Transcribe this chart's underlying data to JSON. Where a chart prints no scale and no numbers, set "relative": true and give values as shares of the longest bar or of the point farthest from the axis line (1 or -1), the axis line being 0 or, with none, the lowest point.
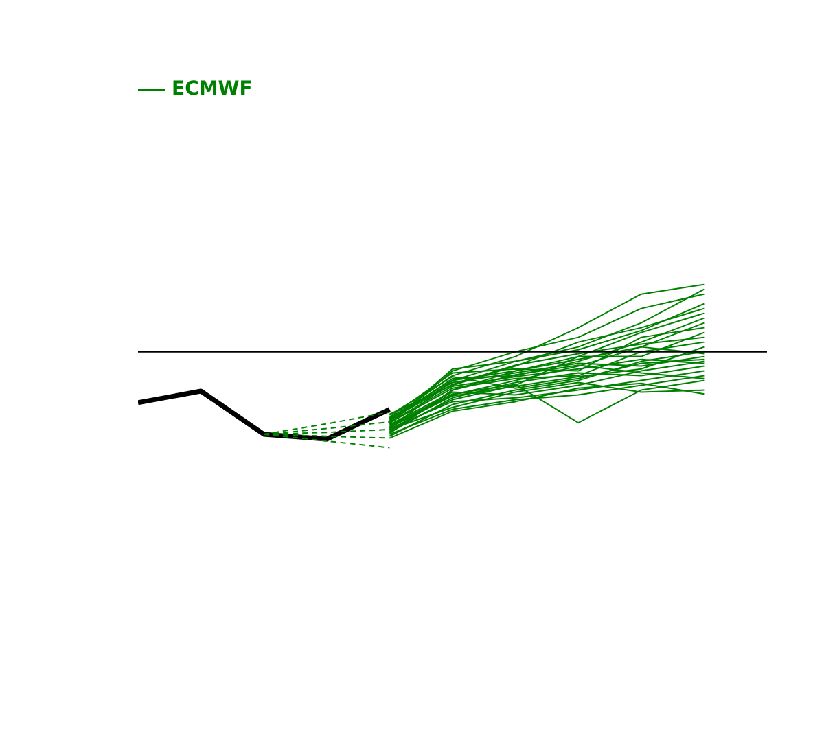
{
  "chart_data": {
    "type": "line",
    "relative": true,
    "categories": [
      null,
      null,
      null,
      null,
      null,
      null,
      null,
      null,
      null,
      null,
      null
    ],
    "tick_labels": false,
    "grid": false,
    "legend": "top left",
    "marker": "none",
    "series": [
      {
        "color": "#000000",
        "values": [
          -0.53,
          -0.41,
          -0.86,
          -0.91,
          -0.6,
          null,
          null,
          null,
          null,
          null,
          null
        ]
      },
      {
        "color": "#008000",
        "values": [
          null,
          null,
          -0.86,
          -0.75,
          -0.63,
          null,
          null,
          null,
          null,
          null,
          null
        ],
        "line_style": "dashed"
      },
      {
        "color": "#008000",
        "values": [
          null,
          null,
          -0.86,
          -0.8,
          -0.73,
          null,
          null,
          null,
          null,
          null,
          null
        ],
        "line_style": "dashed"
      },
      {
        "color": "#008000",
        "values": [
          null,
          null,
          -0.86,
          -0.84,
          -0.81,
          null,
          null,
          null,
          null,
          null,
          null
        ],
        "line_style": "dashed"
      },
      {
        "color": "#008000",
        "values": [
          null,
          null,
          -0.86,
          -0.88,
          -0.9,
          null,
          null,
          null,
          null,
          null,
          null
        ],
        "line_style": "dashed"
      },
      {
        "color": "#008000",
        "values": [
          null,
          null,
          -0.86,
          -0.93,
          -1.0,
          null,
          null,
          null,
          null,
          null,
          null
        ],
        "line_style": "dashed"
      },
      {
        "name": "ECMWF",
        "color": "#008000",
        "values": [
          null,
          null,
          null,
          null,
          -0.7,
          -0.25,
          -0.05,
          0.25,
          0.6,
          0.7,
          null
        ]
      },
      {
        "color": "#008000",
        "values": [
          null,
          null,
          null,
          null,
          -0.75,
          -0.2,
          0.0,
          0.15,
          0.45,
          0.6,
          null
        ]
      },
      {
        "color": "#008000",
        "values": [
          null,
          null,
          null,
          null,
          -0.8,
          -0.3,
          -0.1,
          0.05,
          0.3,
          0.65,
          null
        ]
      },
      {
        "color": "#008000",
        "values": [
          null,
          null,
          null,
          null,
          -0.65,
          -0.35,
          -0.15,
          0.1,
          0.25,
          0.45,
          null
        ]
      },
      {
        "color": "#008000",
        "values": [
          null,
          null,
          null,
          null,
          -0.85,
          -0.4,
          -0.2,
          -0.05,
          0.2,
          0.4,
          null
        ]
      },
      {
        "color": "#008000",
        "values": [
          null,
          null,
          null,
          null,
          -0.72,
          -0.28,
          -0.25,
          -0.1,
          0.1,
          0.35,
          null
        ]
      },
      {
        "color": "#008000",
        "values": [
          null,
          null,
          null,
          null,
          -0.78,
          -0.45,
          -0.3,
          -0.15,
          0.05,
          0.3,
          null
        ]
      },
      {
        "color": "#008000",
        "values": [
          null,
          null,
          null,
          null,
          -0.68,
          -0.22,
          -0.18,
          -0.2,
          0.15,
          0.25,
          null
        ]
      },
      {
        "color": "#008000",
        "values": [
          null,
          null,
          null,
          null,
          -0.82,
          -0.5,
          -0.35,
          -0.05,
          -0.05,
          0.2,
          null
        ]
      },
      {
        "color": "#008000",
        "values": [
          null,
          null,
          null,
          null,
          -0.74,
          -0.38,
          -0.28,
          -0.25,
          0.0,
          0.1,
          null
        ]
      },
      {
        "color": "#008000",
        "values": [
          null,
          null,
          null,
          null,
          -0.88,
          -0.55,
          -0.4,
          -0.3,
          -0.1,
          0.0,
          null
        ]
      },
      {
        "color": "#008000",
        "values": [
          null,
          null,
          null,
          null,
          -0.7,
          -0.32,
          -0.22,
          -0.12,
          -0.15,
          -0.05,
          null
        ]
      },
      {
        "color": "#008000",
        "values": [
          null,
          null,
          null,
          null,
          -0.76,
          -0.42,
          -0.45,
          -0.35,
          -0.2,
          -0.1,
          null
        ]
      },
      {
        "color": "#008000",
        "values": [
          null,
          null,
          null,
          null,
          -0.84,
          -0.48,
          -0.32,
          -0.22,
          -0.25,
          -0.15,
          null
        ]
      },
      {
        "color": "#008000",
        "values": [
          null,
          null,
          null,
          null,
          -0.66,
          -0.26,
          -0.38,
          -0.28,
          -0.12,
          -0.08,
          null
        ]
      },
      {
        "color": "#008000",
        "values": [
          null,
          null,
          null,
          null,
          -0.8,
          -0.52,
          -0.48,
          -0.4,
          -0.3,
          -0.2,
          null
        ]
      },
      {
        "color": "#008000",
        "values": [
          null,
          null,
          null,
          null,
          -0.73,
          -0.36,
          -0.26,
          -0.18,
          -0.08,
          -0.12,
          null
        ]
      },
      {
        "color": "#008000",
        "values": [
          null,
          null,
          null,
          null,
          -0.86,
          -0.6,
          -0.5,
          -0.45,
          -0.35,
          -0.25,
          null
        ]
      },
      {
        "color": "#008000",
        "values": [
          null,
          null,
          null,
          null,
          -0.77,
          -0.44,
          -0.34,
          -0.74,
          -0.4,
          -0.3,
          null
        ]
      },
      {
        "color": "#008000",
        "values": [
          null,
          null,
          null,
          null,
          -0.81,
          -0.58,
          -0.42,
          -0.32,
          -0.42,
          -0.4,
          null
        ]
      },
      {
        "color": "#008000",
        "values": [
          null,
          null,
          null,
          null,
          -0.69,
          -0.3,
          -0.2,
          -0.08,
          0.05,
          -0.02,
          null
        ]
      },
      {
        "color": "#008000",
        "values": [
          null,
          null,
          null,
          null,
          -0.9,
          -0.62,
          -0.52,
          -0.38,
          -0.33,
          -0.44,
          null
        ]
      },
      {
        "color": "#008000",
        "values": [
          null,
          null,
          null,
          null,
          -0.71,
          -0.34,
          -0.14,
          -0.02,
          0.08,
          0.15,
          null
        ]
      },
      {
        "color": "#008000",
        "values": [
          null,
          null,
          null,
          null,
          -0.79,
          -0.46,
          -0.36,
          -0.26,
          -0.18,
          0.05,
          null
        ]
      },
      {
        "color": "#008000",
        "values": [
          null,
          null,
          null,
          null,
          -0.83,
          -0.4,
          -0.24,
          -0.14,
          -0.22,
          -0.28,
          null
        ]
      },
      {
        "color": "#008000",
        "values": [
          null,
          null,
          null,
          null,
          -0.75,
          -0.18,
          -0.1,
          0.02,
          0.22,
          0.5,
          null
        ]
      }
    ]
  }
}
